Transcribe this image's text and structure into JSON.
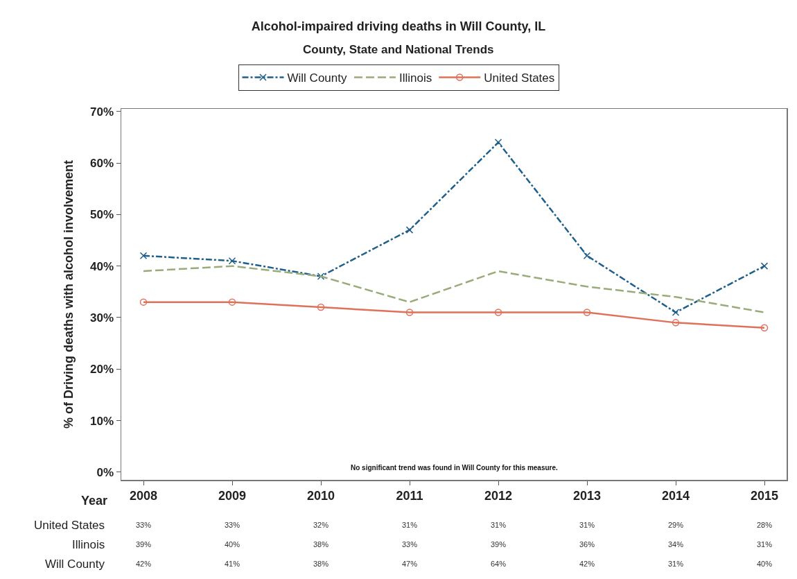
{
  "chart_data": {
    "type": "line",
    "title": "Alcohol-impaired driving deaths in Will County, IL",
    "subtitle": "County, State and National Trends",
    "xlabel": "Year",
    "ylabel": "% of Driving deaths with alcohol involvement",
    "categories": [
      "2008",
      "2009",
      "2010",
      "2011",
      "2012",
      "2013",
      "2014",
      "2015"
    ],
    "series": [
      {
        "name": "Will County",
        "color": "#1f5f8b",
        "values": [
          42,
          41,
          38,
          47,
          64,
          42,
          31,
          40
        ],
        "value_labels": [
          "42%",
          "41%",
          "38%",
          "47%",
          "64%",
          "42%",
          "31%",
          "40%"
        ],
        "marker": "cross",
        "line_style": "dashdot"
      },
      {
        "name": "Illinois",
        "color": "#9aab7a",
        "values": [
          39,
          40,
          38,
          33,
          39,
          36,
          34,
          31
        ],
        "value_labels": [
          "39%",
          "40%",
          "38%",
          "33%",
          "39%",
          "36%",
          "34%",
          "31%"
        ],
        "marker": "none",
        "line_style": "dashed"
      },
      {
        "name": "United States",
        "color": "#e0705a",
        "values": [
          33,
          33,
          32,
          31,
          31,
          31,
          29,
          28
        ],
        "value_labels": [
          "33%",
          "33%",
          "32%",
          "31%",
          "31%",
          "31%",
          "29%",
          "28%"
        ],
        "marker": "circle",
        "line_style": "solid"
      }
    ],
    "ylim": [
      -1.5,
      70.5
    ],
    "yticks": [
      {
        "value": 0,
        "label": "0%"
      },
      {
        "value": 10,
        "label": "10%"
      },
      {
        "value": 20,
        "label": "20%"
      },
      {
        "value": 30,
        "label": "30%"
      },
      {
        "value": 40,
        "label": "40%"
      },
      {
        "value": 50,
        "label": "50%"
      },
      {
        "value": 60,
        "label": "60%"
      },
      {
        "value": 70,
        "label": "70%"
      }
    ],
    "grid": false,
    "legend": "top",
    "annotations": [
      "No significant trend was found in Will County for this measure."
    ]
  }
}
